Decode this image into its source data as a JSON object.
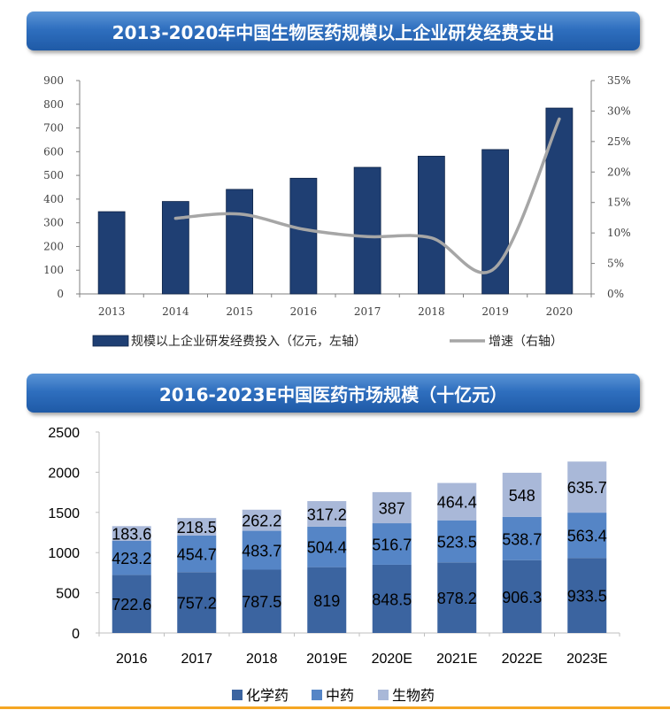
{
  "chart_data": [
    {
      "type": "bar",
      "title": "2013-2020年中国生物医药规模以上企业研发经费支出",
      "categories": [
        "2013",
        "2014",
        "2015",
        "2016",
        "2017",
        "2018",
        "2019",
        "2020"
      ],
      "series": [
        {
          "name": "规模以上企业研发经费投入（亿元，左轴）",
          "type": "bar",
          "axis": "left",
          "values": [
            347,
            390,
            441,
            488,
            534,
            581,
            609,
            784
          ]
        },
        {
          "name": "增速（右轴）",
          "type": "line",
          "axis": "right",
          "values": [
            null,
            12.4,
            13.1,
            10.6,
            9.4,
            9.2,
            4.3,
            28.7
          ]
        }
      ],
      "ylim_left": [
        0,
        900
      ],
      "yticks_left": [
        "0",
        "100",
        "200",
        "300",
        "400",
        "500",
        "600",
        "700",
        "800",
        "900"
      ],
      "ylim_right": [
        0,
        35
      ],
      "yticks_right": [
        "0%",
        "5%",
        "10%",
        "15%",
        "20%",
        "25%",
        "30%",
        "35%"
      ],
      "legend_position": "bottom",
      "colors": {
        "bar": "#1f3f73",
        "line": "#a6a6a6"
      }
    },
    {
      "type": "bar",
      "stacked": true,
      "title": "2016-2023E中国医药市场规模（十亿元）",
      "categories": [
        "2016",
        "2017",
        "2018",
        "2019E",
        "2020E",
        "2021E",
        "2022E",
        "2023E"
      ],
      "series": [
        {
          "name": "化学药",
          "values": [
            722.6,
            757.2,
            787.5,
            819,
            848.5,
            878.2,
            906.3,
            933.5
          ],
          "labels": [
            "722.6",
            "757.2",
            "787.5",
            "819",
            "848.5",
            "878.2",
            "906.3",
            "933.5"
          ]
        },
        {
          "name": "中药",
          "values": [
            423.2,
            454.7,
            483.7,
            504.4,
            516.7,
            523.5,
            538.7,
            563.4
          ],
          "labels": [
            "423.2",
            "454.7",
            "483.7",
            "504.4",
            "516.7",
            "523.5",
            "538.7",
            "563.4"
          ]
        },
        {
          "name": "生物药",
          "values": [
            183.6,
            218.5,
            262.2,
            317.2,
            387,
            464.4,
            548,
            635.7
          ],
          "labels": [
            "183.6",
            "218.5",
            "262.2",
            "317.2",
            "387",
            "464.4",
            "548",
            "635.7"
          ]
        }
      ],
      "ylim": [
        0,
        2500
      ],
      "yticks": [
        "0",
        "500",
        "1000",
        "1500",
        "2000",
        "2500"
      ],
      "legend_position": "bottom",
      "colors": {
        "化学药": "#3b64a0",
        "中药": "#5585c6",
        "生物药": "#a9b8d8"
      }
    }
  ]
}
